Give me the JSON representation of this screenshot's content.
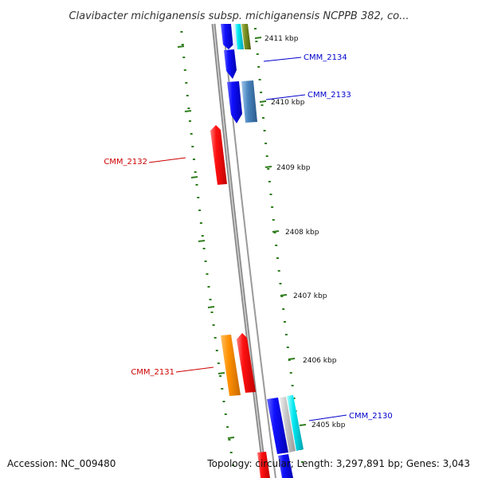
{
  "title": "Clavibacter michiganensis subsp. michiganensis NCPPB 382, co...",
  "footer": {
    "accession": "Accession: NC_009480",
    "topology": "Topology: circular; Length: 3,297,891 bp; Genes: 3,043"
  },
  "colors": {
    "backbone": "#8c8c8c",
    "tick": "#2e7d1c",
    "forward_label": "#0000cc",
    "reverse_label": "#cc0000"
  },
  "ticks": [
    {
      "label": "2411 kbp"
    },
    {
      "label": "2410 kbp"
    },
    {
      "label": "2409 kbp"
    },
    {
      "label": "2408 kbp"
    },
    {
      "label": "2407 kbp"
    },
    {
      "label": "2406 kbp"
    },
    {
      "label": "2405 kbp"
    }
  ],
  "genes": [
    {
      "label": "CMM_2134",
      "strand": "forward",
      "color": "#0000ff"
    },
    {
      "label": "CMM_2133",
      "strand": "forward",
      "color": "#0000ff"
    },
    {
      "label": "CMM_2132",
      "strand": "reverse",
      "color": "#ff0000"
    },
    {
      "label": "CMM_2131",
      "strand": "reverse",
      "color": "#ff0000"
    },
    {
      "label": "CMM_2130",
      "strand": "forward",
      "color": "#0000ff"
    }
  ]
}
